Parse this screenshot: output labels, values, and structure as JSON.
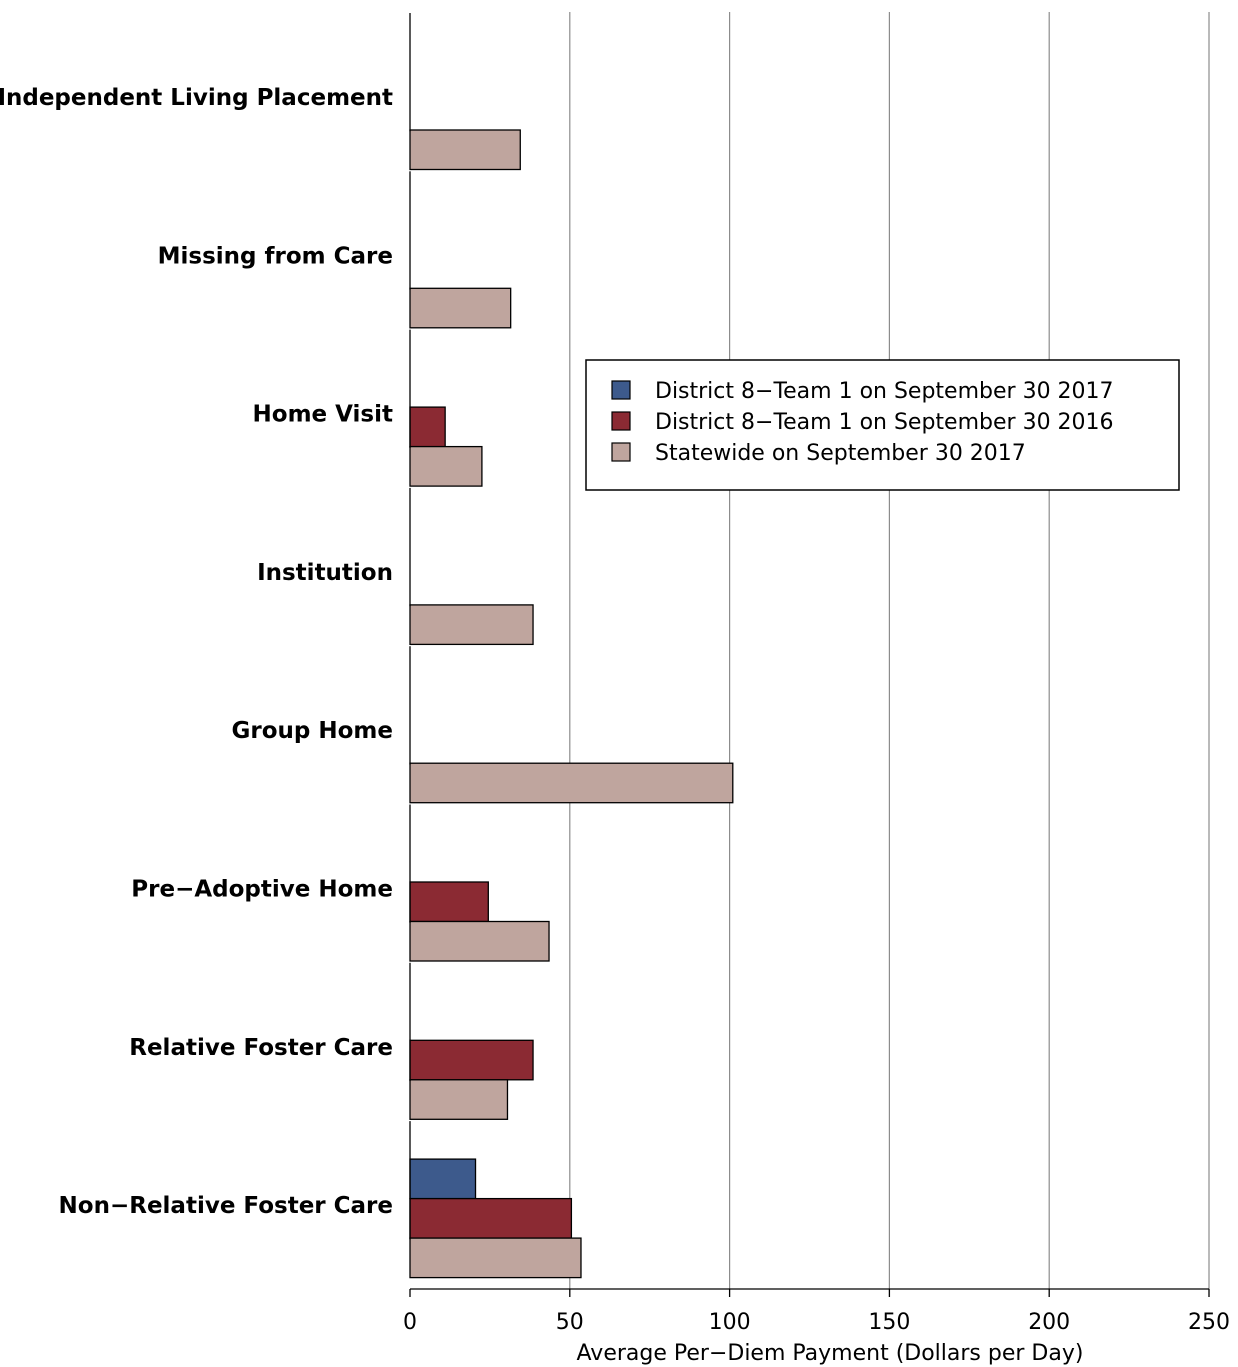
{
  "chart_data": {
    "type": "bar",
    "orientation": "horizontal",
    "categories": [
      "Independent Living Placement",
      "Missing from Care",
      "Home Visit",
      "Institution",
      "Group Home",
      "Pre−Adoptive Home",
      "Relative Foster Care",
      "Non−Relative Foster Care"
    ],
    "series": [
      {
        "name": "District 8−Team 1 on September 30 2017",
        "color": "#3d5a8c",
        "values": [
          null,
          null,
          null,
          null,
          null,
          null,
          null,
          20.5
        ]
      },
      {
        "name": "District 8−Team 1 on September 30 2016",
        "color": "#8b2a33",
        "values": [
          null,
          null,
          11,
          null,
          null,
          24.5,
          38.5,
          50.5
        ]
      },
      {
        "name": "Statewide on September 30 2017",
        "color": "#bfa59e",
        "values": [
          34.5,
          31.5,
          22.5,
          38.5,
          101,
          43.5,
          30.5,
          53.5
        ]
      }
    ],
    "xlabel": "Average Per−Diem Payment (Dollars per Day)",
    "ylabel": "",
    "xlim": [
      0,
      250
    ],
    "xticks": [
      0,
      50,
      100,
      150,
      200,
      250
    ],
    "grid": true,
    "legend_position": "upper-right"
  }
}
